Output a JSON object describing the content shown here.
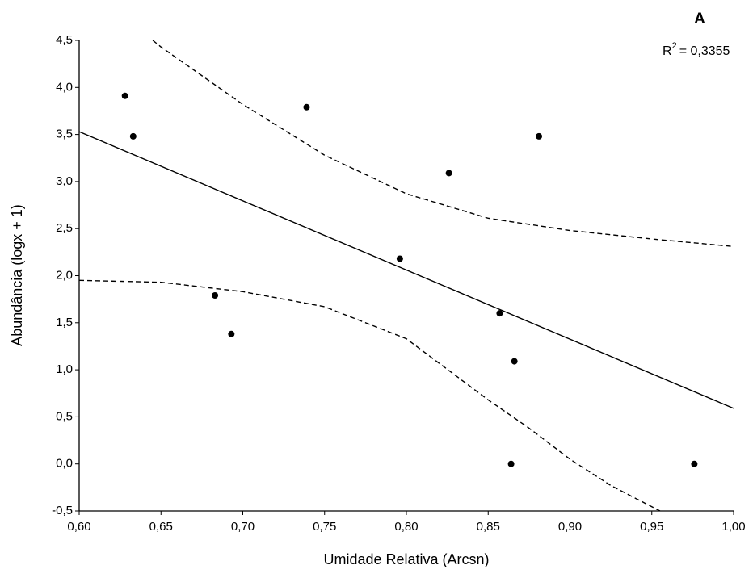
{
  "chart_data": {
    "type": "scatter",
    "x_label": "Umidade Relativa (Arcsn)",
    "y_label": "Abundância (logx + 1)",
    "annotations": {
      "panel": "A",
      "r2_symbol": "R",
      "r2_exponent": "2",
      "r2_value": "= 0,3355"
    },
    "color": "#000000",
    "xlim": [
      0.6,
      1.0
    ],
    "ylim": [
      -0.5,
      4.5
    ],
    "xticks": [
      {
        "value": 0.6,
        "label": "0,60"
      },
      {
        "value": 0.65,
        "label": "0,65"
      },
      {
        "value": 0.7,
        "label": "0,70"
      },
      {
        "value": 0.75,
        "label": "0,75"
      },
      {
        "value": 0.8,
        "label": "0,80"
      },
      {
        "value": 0.85,
        "label": "0,85"
      },
      {
        "value": 0.9,
        "label": "0,90"
      },
      {
        "value": 0.95,
        "label": "0,95"
      },
      {
        "value": 1.0,
        "label": "1,00"
      }
    ],
    "yticks": [
      {
        "value": -0.5,
        "label": "-0,5"
      },
      {
        "value": 0,
        "label": "0,0"
      },
      {
        "value": 0.5,
        "label": "0,5"
      },
      {
        "value": 1.0,
        "label": "1,0"
      },
      {
        "value": 1.5,
        "label": "1,5"
      },
      {
        "value": 2.0,
        "label": "2,0"
      },
      {
        "value": 2.5,
        "label": "2,5"
      },
      {
        "value": 3.0,
        "label": "3,0"
      },
      {
        "value": 3.5,
        "label": "3,5"
      },
      {
        "value": 4.0,
        "label": "4,0"
      },
      {
        "value": 4.5,
        "label": "4,5"
      }
    ],
    "points": {
      "x": [
        0.628,
        0.633,
        0.683,
        0.693,
        0.739,
        0.796,
        0.826,
        0.857,
        0.866,
        0.864,
        0.881,
        0.976
      ],
      "values": [
        3.91,
        3.48,
        1.79,
        1.38,
        3.79,
        2.18,
        3.09,
        1.6,
        1.09,
        0.0,
        3.48,
        0.0
      ]
    },
    "fit": {
      "x": [
        0.6,
        1.0
      ],
      "values": [
        3.53,
        0.59
      ]
    },
    "upper_band": {
      "x": [
        0.645,
        0.65,
        0.7,
        0.75,
        0.8,
        0.85,
        0.9,
        0.95,
        1.0
      ],
      "values": [
        4.5,
        4.43,
        3.82,
        3.28,
        2.87,
        2.61,
        2.48,
        2.39,
        2.31
      ]
    },
    "lower_band": {
      "x": [
        0.6,
        0.65,
        0.7,
        0.75,
        0.8,
        0.85,
        0.875,
        0.9,
        0.925,
        0.955
      ],
      "values": [
        1.95,
        1.93,
        1.83,
        1.67,
        1.33,
        0.68,
        0.38,
        0.05,
        -0.23,
        -0.5
      ]
    }
  }
}
